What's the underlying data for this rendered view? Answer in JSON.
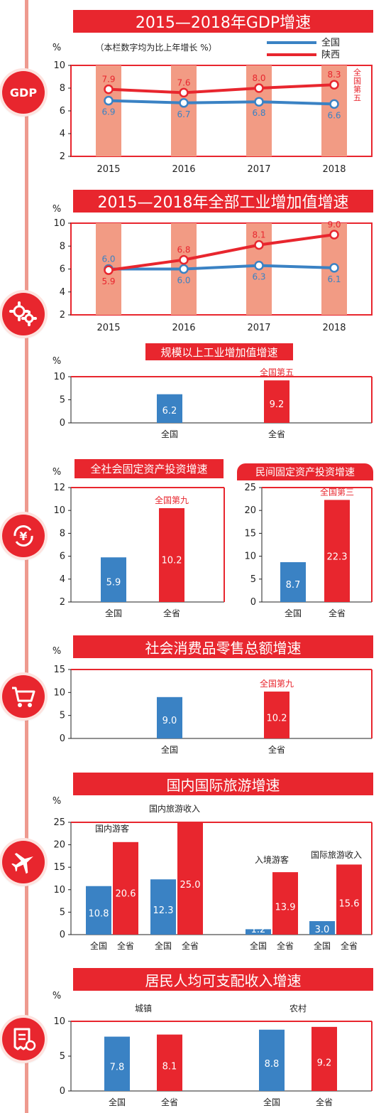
{
  "colors": {
    "national": "#3a82c4",
    "province": "#e8262e",
    "column": "#f29b84"
  },
  "icons": [
    "gdp-icon",
    "gears-icon",
    "yuan-cycle-icon",
    "shopping-cart-icon",
    "airplane-icon",
    "receipt-icon"
  ],
  "gdp_icon_text": "GDP",
  "chart_data": [
    {
      "id": "gdp",
      "type": "line",
      "title": "2015—2018年GDP增速",
      "unit": "%",
      "note": "（本栏数字均为比上年增长 %）",
      "categories": [
        "2015",
        "2016",
        "2017",
        "2018"
      ],
      "ylim": [
        2,
        10
      ],
      "yticks": [
        "2",
        "4",
        "6",
        "8",
        "10"
      ],
      "series": [
        {
          "name": "全国",
          "values": [
            6.9,
            6.7,
            6.8,
            6.6
          ],
          "labels": [
            "6.9",
            "6.7",
            "6.8",
            "6.6"
          ]
        },
        {
          "name": "陕西",
          "values": [
            7.9,
            7.6,
            8.0,
            8.3
          ],
          "labels": [
            "7.9",
            "7.6",
            "8.0",
            "8.3"
          ]
        }
      ],
      "annotation": "全国第五",
      "legend": "top-right"
    },
    {
      "id": "industry",
      "type": "line",
      "title": "2015—2018年全部工业增加值增速",
      "unit": "%",
      "categories": [
        "2015",
        "2016",
        "2017",
        "2018"
      ],
      "ylim": [
        2,
        10
      ],
      "yticks": [
        "2",
        "4",
        "6",
        "8",
        "10"
      ],
      "series": [
        {
          "name": "全国",
          "values": [
            6.0,
            6.0,
            6.3,
            6.1
          ],
          "labels": [
            "6.0",
            "6.0",
            "6.3",
            "6.1"
          ]
        },
        {
          "name": "陕西",
          "values": [
            5.9,
            6.8,
            8.1,
            9.0
          ],
          "labels": [
            "5.9",
            "6.8",
            "8.1",
            "9.0"
          ]
        }
      ]
    },
    {
      "id": "above_scale",
      "type": "bar",
      "title": "规模以上工业增加值增速",
      "unit": "%",
      "categories": [
        "全国",
        "全省"
      ],
      "values": [
        6.2,
        9.2
      ],
      "labels": [
        "6.2",
        "9.2"
      ],
      "ylim": [
        0,
        10
      ],
      "yticks": [
        "0",
        "5",
        "10"
      ],
      "annotation": "全国第五"
    },
    {
      "id": "fixed_invest",
      "type": "bar",
      "title": "全社会固定资产投资增速",
      "unit": "%",
      "categories": [
        "全国",
        "全省"
      ],
      "values": [
        5.9,
        10.2
      ],
      "labels": [
        "5.9",
        "10.2"
      ],
      "ylim": [
        2,
        12
      ],
      "yticks": [
        "2",
        "4",
        "6",
        "8",
        "10",
        "12"
      ],
      "annotation": "全国第九"
    },
    {
      "id": "private_invest",
      "type": "bar",
      "title": "民间固定资产投资增速",
      "categories": [
        "全国",
        "全省"
      ],
      "values": [
        8.7,
        22.3
      ],
      "labels": [
        "8.7",
        "22.3"
      ],
      "ylim": [
        0,
        25
      ],
      "yticks": [
        "0",
        "5",
        "10",
        "15",
        "20",
        "25"
      ],
      "annotation": "全国第三"
    },
    {
      "id": "retail",
      "type": "bar",
      "title": "社会消费品零售总额增速",
      "unit": "%",
      "categories": [
        "全国",
        "全省"
      ],
      "values": [
        9.0,
        10.2
      ],
      "labels": [
        "9.0",
        "10.2"
      ],
      "ylim": [
        0,
        15
      ],
      "yticks": [
        "0",
        "5",
        "10",
        "15"
      ],
      "annotation": "全国第九"
    },
    {
      "id": "tourism",
      "type": "bar",
      "title": "国内国际旅游增速",
      "unit": "%",
      "groups": [
        {
          "label": "国内游客",
          "categories": [
            "全国",
            "全省"
          ],
          "values": [
            10.8,
            20.6
          ],
          "labels": [
            "10.8",
            "20.6"
          ]
        },
        {
          "label": "国内旅游收入",
          "categories": [
            "全国",
            "全省"
          ],
          "values": [
            12.3,
            25.0
          ],
          "labels": [
            "12.3",
            "25.0"
          ]
        },
        {
          "label": "入境游客",
          "categories": [
            "全国",
            "全省"
          ],
          "values": [
            1.2,
            13.9
          ],
          "labels": [
            "1.2",
            "13.9"
          ]
        },
        {
          "label": "国际旅游收入",
          "categories": [
            "全国",
            "全省"
          ],
          "values": [
            3.0,
            15.6
          ],
          "labels": [
            "3.0",
            "15.6"
          ]
        }
      ],
      "ylim": [
        0,
        25
      ],
      "yticks": [
        "0",
        "5",
        "10",
        "15",
        "20",
        "25"
      ]
    },
    {
      "id": "income",
      "type": "bar",
      "title": "居民人均可支配收入增速",
      "unit": "%",
      "groups": [
        {
          "label": "城镇",
          "categories": [
            "全国",
            "全省"
          ],
          "values": [
            7.8,
            8.1
          ],
          "labels": [
            "7.8",
            "8.1"
          ]
        },
        {
          "label": "农村",
          "categories": [
            "全国",
            "全省"
          ],
          "values": [
            8.8,
            9.2
          ],
          "labels": [
            "8.8",
            "9.2"
          ]
        }
      ],
      "ylim": [
        0,
        10
      ],
      "yticks": [
        "0",
        "5",
        "10"
      ]
    }
  ]
}
